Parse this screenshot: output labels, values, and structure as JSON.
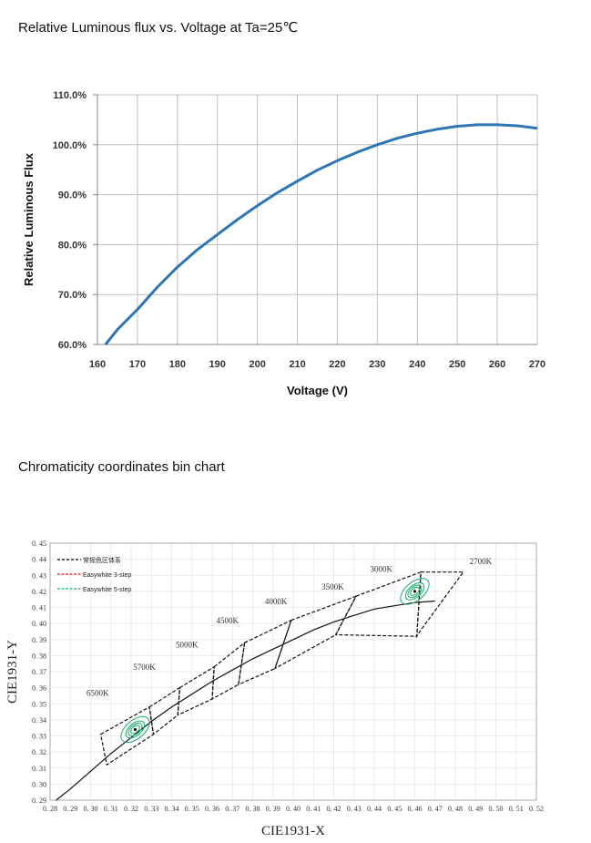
{
  "chart_data": [
    {
      "type": "line",
      "title": "Relative Luminous flux vs. Voltage at Ta=25℃",
      "xlabel": "Voltage (V)",
      "ylabel": "Relative Luminous Flux",
      "xlim": [
        160,
        270
      ],
      "ylim": [
        60,
        110
      ],
      "x_ticks": [
        "160",
        "170",
        "180",
        "190",
        "200",
        "210",
        "220",
        "230",
        "240",
        "250",
        "260",
        "270"
      ],
      "y_ticks": [
        "60.0%",
        "70.0%",
        "80.0%",
        "90.0%",
        "100.0%",
        "110.0%"
      ],
      "grid": true,
      "line_color": "#2e75b6",
      "series": [
        {
          "x": [
            162,
            165,
            170,
            175,
            180,
            185,
            190,
            195,
            200,
            205,
            210,
            215,
            220,
            225,
            230,
            235,
            240,
            245,
            250,
            255,
            258,
            260,
            265,
            270
          ],
          "values": [
            60.0,
            63.0,
            67.0,
            71.5,
            75.5,
            79.0,
            82.0,
            85.0,
            87.8,
            90.4,
            92.7,
            94.9,
            96.8,
            98.5,
            100.0,
            101.3,
            102.3,
            103.1,
            103.7,
            104.0,
            104.0,
            104.0,
            103.8,
            103.3
          ]
        }
      ]
    },
    {
      "type": "scatter",
      "title": "Chromaticity coordinates bin chart",
      "xlabel": "CIE1931-X",
      "ylabel": "CIE1931-Y",
      "xlim": [
        0.28,
        0.52
      ],
      "ylim": [
        0.29,
        0.45
      ],
      "x_ticks": [
        "0.28",
        "0.29",
        "0.30",
        "0.31",
        "0.32",
        "0.33",
        "0.34",
        "0.35",
        "0.36",
        "0.37",
        "0.38",
        "0.39",
        "0.40",
        "0.41",
        "0.42",
        "0.43",
        "0.44",
        "0.45",
        "0.46",
        "0.47",
        "0.48",
        "0.49",
        "0.50",
        "0.51",
        "0.52"
      ],
      "y_ticks": [
        "0.29",
        "0.30",
        "0.31",
        "0.32",
        "0.33",
        "0.34",
        "0.35",
        "0.36",
        "0.37",
        "0.38",
        "0.39",
        "0.40",
        "0.41",
        "0.42",
        "0.43",
        "0.44",
        "0.45"
      ],
      "legend": [
        "常规色区体系",
        "Easywhite 3-step",
        "Easywhite 5-step"
      ],
      "legend_colors": [
        "#000000",
        "#e02020",
        "#1aaa6a"
      ],
      "legend_position": "top-left",
      "cct_labels": [
        {
          "text": "6500K",
          "x": 0.298,
          "y": 0.355
        },
        {
          "text": "5700K",
          "x": 0.321,
          "y": 0.371
        },
        {
          "text": "5000K",
          "x": 0.342,
          "y": 0.385
        },
        {
          "text": "4500K",
          "x": 0.362,
          "y": 0.4
        },
        {
          "text": "4000K",
          "x": 0.386,
          "y": 0.412
        },
        {
          "text": "3500K",
          "x": 0.414,
          "y": 0.421
        },
        {
          "text": "3000K",
          "x": 0.438,
          "y": 0.432
        },
        {
          "text": "2700K",
          "x": 0.487,
          "y": 0.437
        }
      ],
      "planckian_locus": {
        "x": [
          0.283,
          0.29,
          0.3,
          0.31,
          0.32,
          0.33,
          0.34,
          0.35,
          0.36,
          0.37,
          0.38,
          0.39,
          0.4,
          0.41,
          0.42,
          0.43,
          0.44,
          0.45,
          0.46,
          0.47
        ],
        "y": [
          0.29,
          0.297,
          0.308,
          0.319,
          0.329,
          0.339,
          0.348,
          0.356,
          0.364,
          0.371,
          0.378,
          0.384,
          0.39,
          0.396,
          0.401,
          0.405,
          0.409,
          0.411,
          0.413,
          0.414
        ]
      },
      "bins": [
        {
          "name": "6500K",
          "corners": [
            [
              0.305,
              0.331
            ],
            [
              0.329,
              0.348
            ],
            [
              0.331,
              0.331
            ],
            [
              0.308,
              0.312
            ]
          ]
        },
        {
          "name": "5700K",
          "corners": [
            [
              0.329,
              0.348
            ],
            [
              0.344,
              0.36
            ],
            [
              0.343,
              0.343
            ],
            [
              0.331,
              0.331
            ]
          ]
        },
        {
          "name": "5000K",
          "corners": [
            [
              0.344,
              0.36
            ],
            [
              0.361,
              0.373
            ],
            [
              0.36,
              0.353
            ],
            [
              0.343,
              0.343
            ]
          ]
        },
        {
          "name": "4500K",
          "corners": [
            [
              0.361,
              0.373
            ],
            [
              0.376,
              0.388
            ],
            [
              0.373,
              0.362
            ],
            [
              0.36,
              0.353
            ]
          ]
        },
        {
          "name": "4000K",
          "corners": [
            [
              0.376,
              0.388
            ],
            [
              0.399,
              0.402
            ],
            [
              0.391,
              0.372
            ],
            [
              0.373,
              0.362
            ]
          ]
        },
        {
          "name": "3500K",
          "corners": [
            [
              0.399,
              0.402
            ],
            [
              0.431,
              0.417
            ],
            [
              0.421,
              0.393
            ],
            [
              0.391,
              0.372
            ]
          ]
        },
        {
          "name": "3000K",
          "corners": [
            [
              0.431,
              0.417
            ],
            [
              0.463,
              0.432
            ],
            [
              0.461,
              0.392
            ],
            [
              0.421,
              0.393
            ]
          ]
        },
        {
          "name": "2700K",
          "corners": [
            [
              0.463,
              0.432
            ],
            [
              0.484,
              0.432
            ],
            [
              0.463,
              0.396
            ],
            [
              0.461,
              0.392
            ]
          ]
        }
      ],
      "ellipses": [
        {
          "cx": 0.322,
          "cy": 0.334,
          "steps": [
            1,
            2,
            3,
            5
          ]
        },
        {
          "cx": 0.46,
          "cy": 0.42,
          "steps": [
            1,
            2,
            3,
            5
          ]
        }
      ]
    }
  ]
}
